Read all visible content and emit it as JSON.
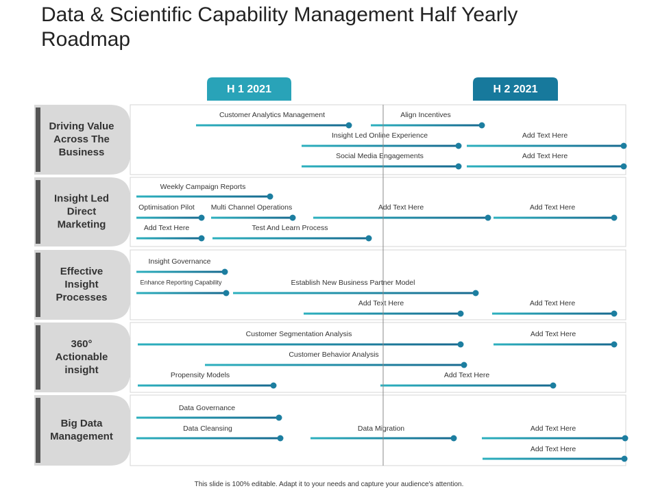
{
  "header": {
    "title": "Data & Scientific Capability Management Half Yearly Roadmap"
  },
  "periods": [
    "H 1  2021",
    "H 2  2021"
  ],
  "rows": [
    {
      "label": "Driving Value Across The Business",
      "tasks": [
        "Customer Analytics Management",
        "Align Incentives",
        "Insight Led Online Experience",
        "Add Text Here",
        "Social Media Engagements",
        "Add Text Here"
      ]
    },
    {
      "label": "Insight Led Direct Marketing",
      "tasks": [
        "Weekly Campaign Reports",
        "Optimisation Pilot",
        "Multi Channel Operations",
        "Add Text Here",
        "Add Text Here",
        "Add Text Here",
        "Test And Learn Process"
      ]
    },
    {
      "label": "Effective Insight Processes",
      "tasks": [
        "Insight Governance",
        "Enhance Reporting Capability",
        "Establish New Business Partner Model",
        "Add Text Here",
        "Add Text Here"
      ]
    },
    {
      "label": "360° Actionable insight",
      "tasks": [
        "Customer Segmentation Analysis",
        "Add Text Here",
        "Customer Behavior Analysis",
        "Propensity Models",
        "Add Text Here"
      ]
    },
    {
      "label": "Big Data Management",
      "tasks": [
        "Data Governance",
        "Data Cleansing",
        "Data Migration",
        "Add Text Here",
        "Add Text Here"
      ]
    }
  ],
  "footer": "This slide is 100% editable. Adapt it to your needs and capture your audience's attention."
}
